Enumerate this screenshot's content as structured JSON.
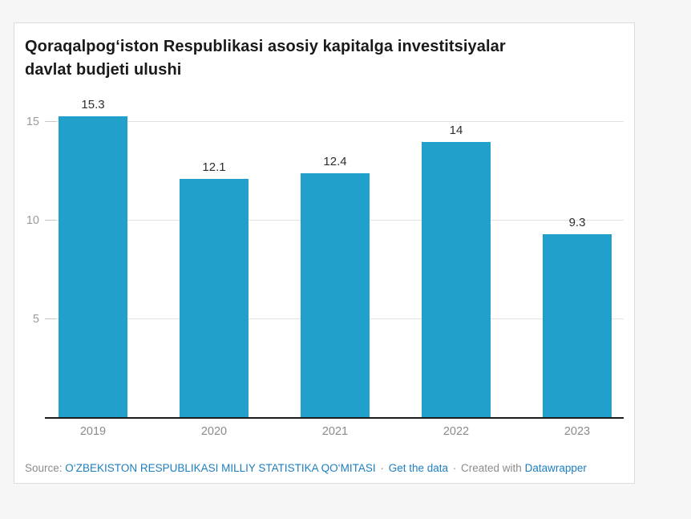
{
  "header": {
    "title": "Qoraqalpog‘iston Respublikasi asosiy kapitalga investitsiyalar davlat budjeti ulushi"
  },
  "chart_data": {
    "type": "bar",
    "title": "Qoraqalpog‘iston Respublikasi asosiy kapitalga investitsiyalar davlat budjeti ulushi",
    "categories": [
      "2019",
      "2020",
      "2021",
      "2022",
      "2023"
    ],
    "values": [
      15.3,
      12.1,
      12.4,
      14,
      9.3
    ],
    "value_labels": [
      "15.3",
      "12.1",
      "12.4",
      "14",
      "9.3"
    ],
    "xlabel": "",
    "ylabel": "",
    "ylim": [
      0,
      16.26
    ],
    "y_ticks": [
      5,
      10,
      15
    ],
    "grid": true,
    "legend": false,
    "bar_color": "#20a0ca"
  },
  "footer": {
    "source_label": "Source:",
    "source_link": "O‘ZBEKISTON RESPUBLIKASI MILLIY STATISTIKA QO‘MITASI",
    "separator": "·",
    "get_data_link": "Get the data",
    "created_with": "Created with",
    "datawrapper_link": "Datawrapper"
  },
  "colors": {
    "bar": "#20a0ca",
    "link": "#1d7ec0",
    "title_text": "#1a1a1a",
    "axis_text": "#9b9b9b",
    "value_label_text": "#2d2d2d",
    "gridline": "#e2e2e2",
    "baseline": "#1c1c1c",
    "page_background": "#f6f6f6",
    "card_background": "#ffffff"
  }
}
